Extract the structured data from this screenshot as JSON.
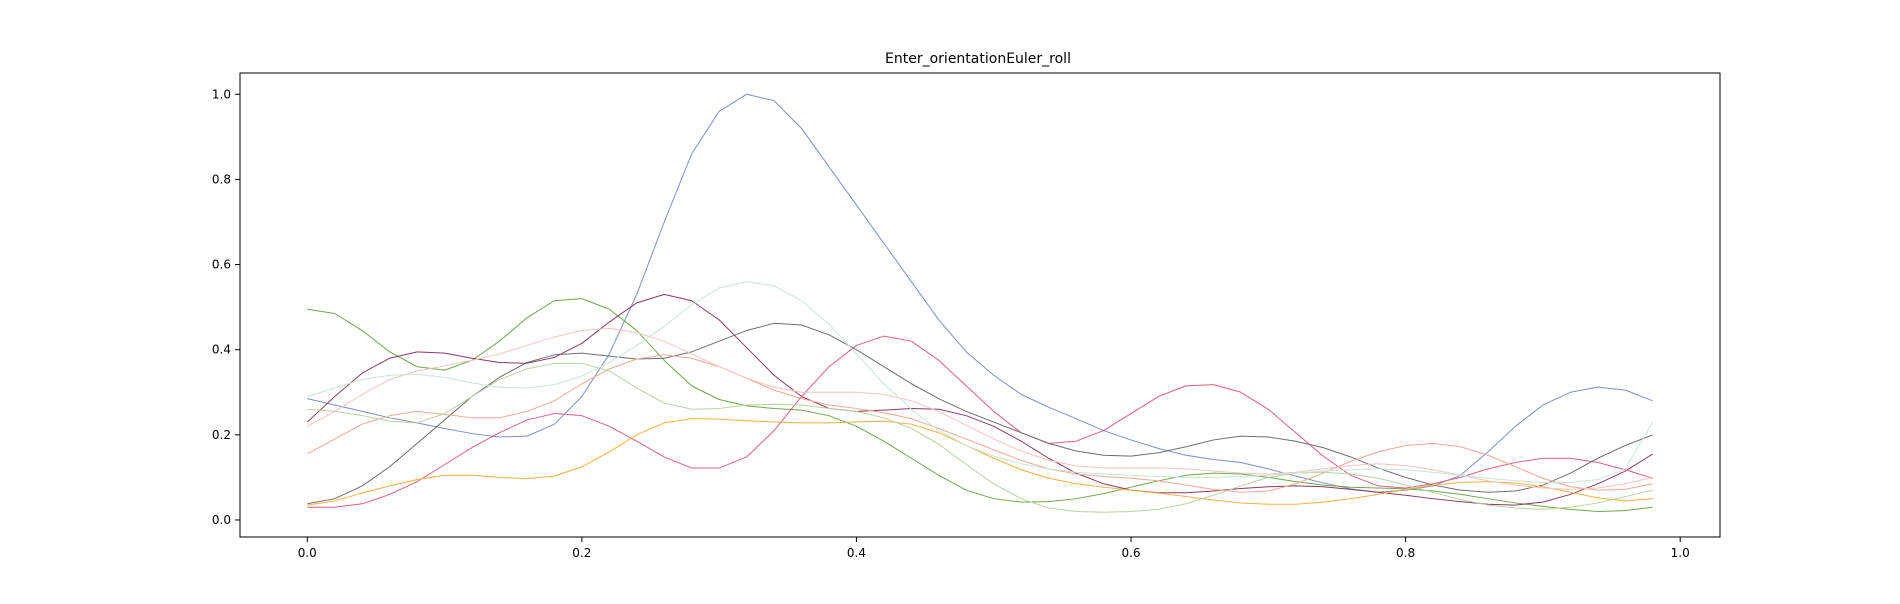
{
  "chart_data": {
    "type": "line",
    "title": "Enter_orientationEuler_roll",
    "xlabel": "",
    "ylabel": "",
    "xlim": [
      -0.049,
      1.029
    ],
    "ylim": [
      -0.04,
      1.05
    ],
    "xticks": [
      0.0,
      0.2,
      0.4,
      0.6,
      0.8,
      1.0
    ],
    "xtick_labels": [
      "0.0",
      "0.2",
      "0.4",
      "0.6",
      "0.8",
      "1.0"
    ],
    "yticks": [
      0.0,
      0.2,
      0.4,
      0.6,
      0.8,
      1.0
    ],
    "ytick_labels": [
      "0.0",
      "0.2",
      "0.4",
      "0.6",
      "0.8",
      "1.0"
    ],
    "grid": false,
    "legend": "none",
    "x": [
      0.0,
      0.02,
      0.04,
      0.06,
      0.08,
      0.1,
      0.12,
      0.14,
      0.16,
      0.18,
      0.2,
      0.22,
      0.24,
      0.26,
      0.28,
      0.3,
      0.32,
      0.34,
      0.36,
      0.38,
      0.4,
      0.42,
      0.44,
      0.46,
      0.48,
      0.5,
      0.52,
      0.54,
      0.56,
      0.58,
      0.6,
      0.62,
      0.64,
      0.66,
      0.68,
      0.7,
      0.72,
      0.74,
      0.76,
      0.78,
      0.8,
      0.82,
      0.84,
      0.86,
      0.88,
      0.9,
      0.92,
      0.94,
      0.96,
      0.98
    ],
    "series": [
      {
        "color": "#7b8fcf",
        "values": [
          0.285,
          0.27,
          0.255,
          0.24,
          0.228,
          0.215,
          0.203,
          0.195,
          0.197,
          0.225,
          0.29,
          0.39,
          0.53,
          0.7,
          0.86,
          0.96,
          1.0,
          0.985,
          0.92,
          0.83,
          0.74,
          0.65,
          0.56,
          0.47,
          0.395,
          0.34,
          0.295,
          0.265,
          0.238,
          0.21,
          0.188,
          0.168,
          0.152,
          0.142,
          0.135,
          0.12,
          0.103,
          0.087,
          0.073,
          0.065,
          0.07,
          0.08,
          0.105,
          0.16,
          0.22,
          0.27,
          0.3,
          0.312,
          0.305,
          0.28
        ]
      },
      {
        "color": "#6aaa4a",
        "values": [
          0.495,
          0.485,
          0.445,
          0.395,
          0.36,
          0.352,
          0.375,
          0.42,
          0.475,
          0.515,
          0.52,
          0.495,
          0.445,
          0.375,
          0.315,
          0.283,
          0.268,
          0.262,
          0.258,
          0.245,
          0.22,
          0.185,
          0.145,
          0.105,
          0.07,
          0.05,
          0.042,
          0.043,
          0.05,
          0.062,
          0.077,
          0.092,
          0.105,
          0.11,
          0.108,
          0.1,
          0.09,
          0.082,
          0.077,
          0.075,
          0.073,
          0.068,
          0.06,
          0.05,
          0.04,
          0.032,
          0.025,
          0.02,
          0.022,
          0.03
        ]
      },
      {
        "color": "#8b3a62",
        "values": [
          0.23,
          0.29,
          0.345,
          0.38,
          0.395,
          0.392,
          0.38,
          0.37,
          0.368,
          0.382,
          0.415,
          0.465,
          0.51,
          0.53,
          0.515,
          0.47,
          0.405,
          0.34,
          0.29,
          0.262,
          0.255,
          0.258,
          0.262,
          0.26,
          0.245,
          0.22,
          0.185,
          0.145,
          0.11,
          0.085,
          0.07,
          0.064,
          0.064,
          0.068,
          0.074,
          0.078,
          0.08,
          0.078,
          0.072,
          0.065,
          0.058,
          0.05,
          0.043,
          0.037,
          0.035,
          0.042,
          0.06,
          0.085,
          0.115,
          0.155
        ]
      },
      {
        "color": "#e0607e",
        "values": [
          0.03,
          0.03,
          0.038,
          0.06,
          0.09,
          0.13,
          0.17,
          0.205,
          0.235,
          0.25,
          0.245,
          0.22,
          0.185,
          0.148,
          0.122,
          0.122,
          0.148,
          0.21,
          0.29,
          0.36,
          0.41,
          0.432,
          0.42,
          0.375,
          0.315,
          0.255,
          0.205,
          0.18,
          0.185,
          0.21,
          0.25,
          0.29,
          0.315,
          0.318,
          0.3,
          0.26,
          0.205,
          0.15,
          0.105,
          0.08,
          0.075,
          0.085,
          0.1,
          0.12,
          0.135,
          0.145,
          0.145,
          0.135,
          0.118,
          0.098
        ]
      },
      {
        "color": "#6e6e6e",
        "values": [
          0.038,
          0.05,
          0.08,
          0.125,
          0.18,
          0.235,
          0.29,
          0.335,
          0.37,
          0.388,
          0.392,
          0.385,
          0.378,
          0.38,
          0.395,
          0.42,
          0.445,
          0.462,
          0.458,
          0.435,
          0.4,
          0.36,
          0.32,
          0.285,
          0.255,
          0.23,
          0.205,
          0.18,
          0.162,
          0.152,
          0.15,
          0.158,
          0.172,
          0.188,
          0.197,
          0.195,
          0.185,
          0.17,
          0.148,
          0.122,
          0.1,
          0.082,
          0.07,
          0.065,
          0.068,
          0.082,
          0.11,
          0.145,
          0.175,
          0.2
        ]
      },
      {
        "color": "#f5b041",
        "values": [
          0.035,
          0.045,
          0.063,
          0.08,
          0.095,
          0.105,
          0.105,
          0.1,
          0.097,
          0.103,
          0.125,
          0.16,
          0.2,
          0.228,
          0.238,
          0.237,
          0.233,
          0.23,
          0.228,
          0.228,
          0.23,
          0.232,
          0.225,
          0.205,
          0.175,
          0.145,
          0.118,
          0.098,
          0.085,
          0.077,
          0.07,
          0.063,
          0.055,
          0.047,
          0.04,
          0.037,
          0.037,
          0.042,
          0.05,
          0.06,
          0.072,
          0.082,
          0.088,
          0.09,
          0.087,
          0.078,
          0.065,
          0.052,
          0.045,
          0.05
        ]
      },
      {
        "color": "#f4a78f",
        "values": [
          0.155,
          0.19,
          0.225,
          0.245,
          0.255,
          0.248,
          0.24,
          0.24,
          0.255,
          0.28,
          0.32,
          0.355,
          0.378,
          0.388,
          0.38,
          0.36,
          0.333,
          0.305,
          0.285,
          0.27,
          0.262,
          0.252,
          0.238,
          0.215,
          0.19,
          0.165,
          0.14,
          0.12,
          0.108,
          0.102,
          0.098,
          0.092,
          0.082,
          0.072,
          0.065,
          0.068,
          0.085,
          0.11,
          0.138,
          0.16,
          0.175,
          0.18,
          0.172,
          0.152,
          0.125,
          0.098,
          0.078,
          0.07,
          0.072,
          0.085
        ]
      },
      {
        "color": "#b8d2a0",
        "values": [
          0.26,
          0.255,
          0.245,
          0.232,
          0.228,
          0.25,
          0.29,
          0.33,
          0.355,
          0.368,
          0.368,
          0.35,
          0.31,
          0.275,
          0.26,
          0.262,
          0.27,
          0.272,
          0.27,
          0.262,
          0.255,
          0.24,
          0.215,
          0.178,
          0.13,
          0.085,
          0.05,
          0.028,
          0.02,
          0.018,
          0.02,
          0.025,
          0.038,
          0.058,
          0.08,
          0.1,
          0.11,
          0.112,
          0.108,
          0.098,
          0.082,
          0.065,
          0.048,
          0.035,
          0.028,
          0.025,
          0.03,
          0.04,
          0.055,
          0.07
        ]
      },
      {
        "color": "#f6c2c2",
        "values": [
          0.22,
          0.255,
          0.295,
          0.33,
          0.35,
          0.362,
          0.375,
          0.39,
          0.41,
          0.43,
          0.445,
          0.45,
          0.44,
          0.42,
          0.39,
          0.36,
          0.333,
          0.312,
          0.3,
          0.3,
          0.3,
          0.295,
          0.28,
          0.255,
          0.222,
          0.19,
          0.162,
          0.14,
          0.127,
          0.122,
          0.122,
          0.122,
          0.12,
          0.115,
          0.11,
          0.108,
          0.112,
          0.12,
          0.128,
          0.132,
          0.128,
          0.118,
          0.105,
          0.092,
          0.082,
          0.075,
          0.072,
          0.075,
          0.085,
          0.1
        ]
      },
      {
        "color": "#c8e6d2",
        "values": [
          0.29,
          0.31,
          0.33,
          0.34,
          0.342,
          0.335,
          0.322,
          0.312,
          0.31,
          0.318,
          0.338,
          0.37,
          0.41,
          0.455,
          0.505,
          0.545,
          0.56,
          0.55,
          0.515,
          0.46,
          0.39,
          0.32,
          0.26,
          0.21,
          0.175,
          0.15,
          0.132,
          0.12,
          0.112,
          0.108,
          0.105,
          0.102,
          0.1,
          0.1,
          0.102,
          0.105,
          0.11,
          0.115,
          0.118,
          0.12,
          0.118,
          0.112,
          0.105,
          0.098,
          0.092,
          0.088,
          0.088,
          0.095,
          0.12,
          0.23
        ]
      }
    ]
  }
}
